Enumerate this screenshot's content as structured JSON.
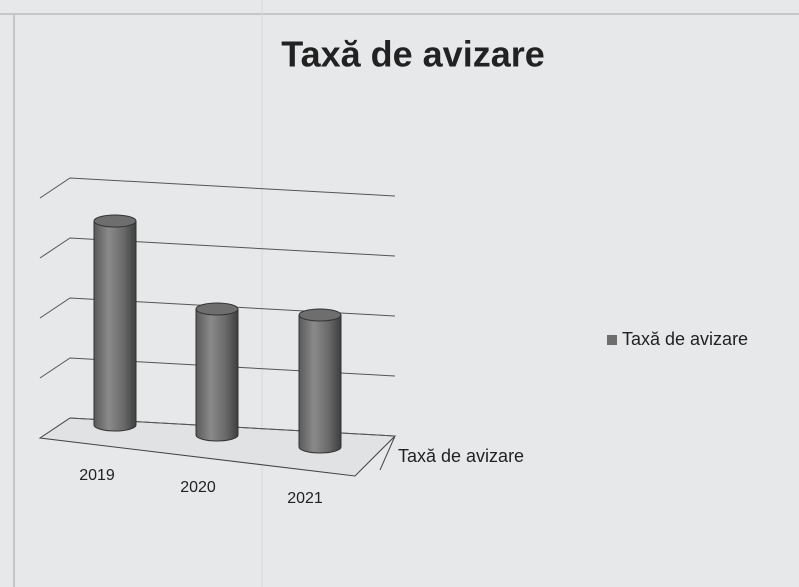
{
  "chart_data": {
    "type": "bar3d",
    "title": "Taxă de avizare",
    "categories": [
      "2019",
      "2020",
      "2021"
    ],
    "series": [
      {
        "name": "Taxă de avizare",
        "color": "#6e6e6e",
        "values": [
          3.4,
          2.1,
          2.2
        ]
      }
    ],
    "ylim": [
      0,
      4
    ],
    "yticks": [
      0,
      1,
      2,
      3,
      4
    ],
    "grid": true,
    "legend": "right"
  }
}
